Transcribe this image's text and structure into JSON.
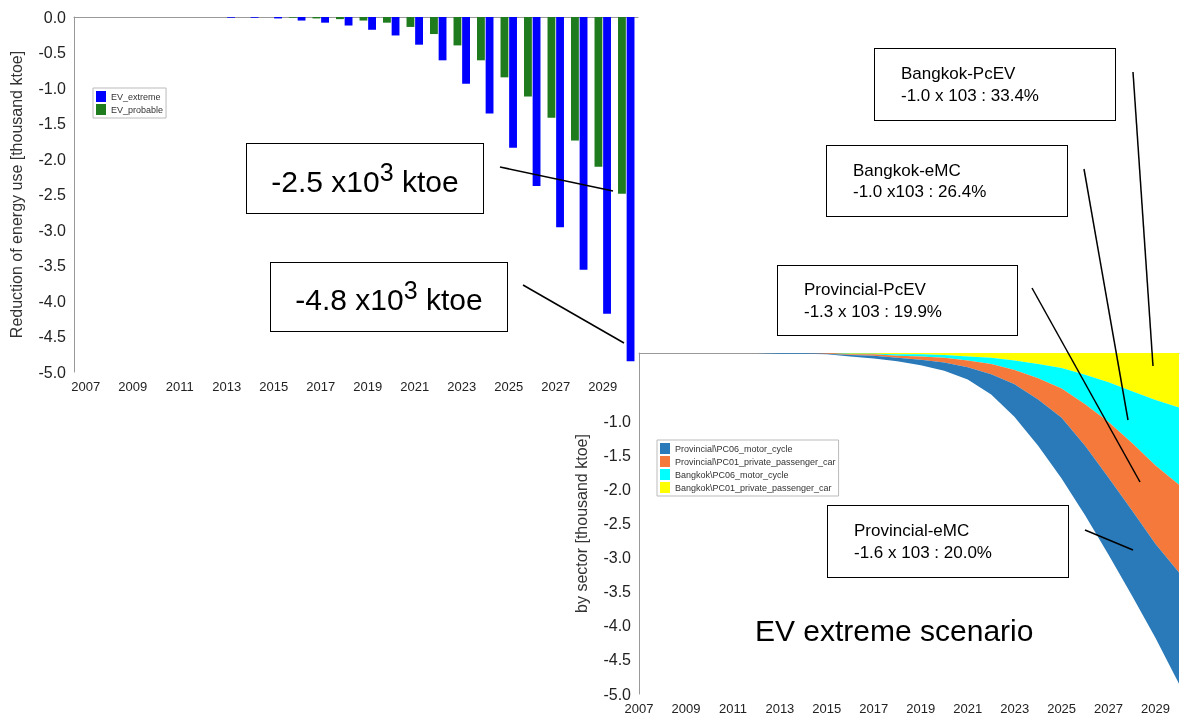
{
  "chart_data": [
    {
      "type": "bar",
      "ylabel": "Reduction of energy use [thousand ktoe]",
      "legend": "top left",
      "grid": false,
      "categories": [
        "2007",
        null,
        "2009",
        null,
        "2011",
        null,
        "2013",
        null,
        "2015",
        null,
        "2017",
        null,
        "2019",
        null,
        "2021",
        null,
        "2023",
        null,
        "2025",
        null,
        "2027",
        null,
        "2029",
        null
      ],
      "series": [
        {
          "name": "EV_extreme",
          "color": "#0000ff",
          "values": [
            0,
            0,
            0,
            0,
            0,
            0,
            -0.01,
            -0.01,
            -0.02,
            -0.05,
            -0.08,
            -0.12,
            -0.18,
            -0.26,
            -0.39,
            -0.61,
            -0.94,
            -1.36,
            -1.84,
            -2.38,
            -2.96,
            -3.56,
            -4.18,
            -4.85
          ]
        },
        {
          "name": "EV_probable",
          "color": "#1e7b1e",
          "values": [
            0,
            0,
            0,
            0,
            0,
            0,
            0,
            0,
            0,
            -0.01,
            -0.02,
            -0.03,
            -0.05,
            -0.08,
            -0.14,
            -0.24,
            -0.4,
            -0.61,
            -0.85,
            -1.12,
            -1.42,
            -1.74,
            -2.11,
            -2.49
          ]
        }
      ],
      "ylim": [
        -5,
        0
      ],
      "yticks": [
        {
          "value": 0,
          "label": "0.0"
        },
        {
          "value": -0.5,
          "label": "-0.5"
        },
        {
          "value": -1,
          "label": "-1.0"
        },
        {
          "value": -1.5,
          "label": "-1.5"
        },
        {
          "value": -2,
          "label": "-2.0"
        },
        {
          "value": -2.5,
          "label": "-2.5"
        },
        {
          "value": -3,
          "label": "-3.0"
        },
        {
          "value": -3.5,
          "label": "-3.5"
        },
        {
          "value": -4,
          "label": "-4.0"
        },
        {
          "value": -4.5,
          "label": "-4.5"
        },
        {
          "value": -5,
          "label": "-5.0"
        }
      ],
      "annotations": [
        "-2.5 x10$^{3}$ ktoe",
        "-4.8 x10$^{3}$ ktoe"
      ]
    },
    {
      "type": "area",
      "stacked": true,
      "title": "EV extreme scenario",
      "ylabel": "by sector [thousand ktoe]",
      "legend": "top left",
      "grid": false,
      "categories": [
        "2007",
        null,
        "2009",
        null,
        "2011",
        null,
        "2013",
        null,
        "2015",
        null,
        "2017",
        null,
        "2019",
        null,
        "2021",
        null,
        "2023",
        null,
        "2025",
        null,
        "2027",
        null,
        "2029",
        null
      ],
      "series": [
        {
          "name": "Bangkok\\PC01_private_passenger_car",
          "color": "#ffff00",
          "values": [
            0,
            0,
            0,
            0,
            0,
            0,
            0,
            0,
            0,
            -0.01,
            -0.01,
            -0.02,
            -0.02,
            -0.03,
            -0.05,
            -0.07,
            -0.11,
            -0.16,
            -0.22,
            -0.32,
            -0.43,
            -0.56,
            -0.69,
            -0.8
          ]
        },
        {
          "name": "Bangkok\\PC06_motor_cycle",
          "color": "#00ffff",
          "values": [
            0,
            0,
            0,
            0,
            0,
            0,
            0,
            0,
            0,
            -0.01,
            -0.01,
            -0.02,
            -0.03,
            -0.04,
            -0.06,
            -0.09,
            -0.14,
            -0.21,
            -0.3,
            -0.43,
            -0.58,
            -0.76,
            -0.96,
            -1.13
          ]
        },
        {
          "name": "Provincial\\PC01_private_passenger_car",
          "color": "#f5793a",
          "values": [
            0,
            0,
            0,
            0,
            0,
            0,
            0,
            0,
            -0.01,
            -0.01,
            -0.02,
            -0.03,
            -0.05,
            -0.07,
            -0.1,
            -0.15,
            -0.21,
            -0.31,
            -0.43,
            -0.61,
            -0.82,
            -0.99,
            -1.15,
            -1.29
          ]
        },
        {
          "name": "Provincial\\PC06_motor_cycle",
          "color": "#2a7ab9",
          "values": [
            0,
            0,
            0,
            0,
            0,
            0,
            -0.01,
            -0.01,
            -0.01,
            -0.02,
            -0.04,
            -0.05,
            -0.08,
            -0.12,
            -0.18,
            -0.3,
            -0.48,
            -0.68,
            -0.89,
            -1.02,
            -1.13,
            -1.25,
            -1.38,
            -1.63
          ]
        }
      ],
      "ylim": [
        -5,
        0
      ],
      "yticks": [
        {
          "value": -1,
          "label": "-1.0"
        },
        {
          "value": -1.5,
          "label": "-1.5"
        },
        {
          "value": -2,
          "label": "-2.0"
        },
        {
          "value": -2.5,
          "label": "-2.5"
        },
        {
          "value": -3,
          "label": "-3.0"
        },
        {
          "value": -3.5,
          "label": "-3.5"
        },
        {
          "value": -4,
          "label": "-4.0"
        },
        {
          "value": -4.5,
          "label": "-4.5"
        },
        {
          "value": -5,
          "label": "-5.0"
        }
      ],
      "annotations": [
        "Bangkok-PcEV\n-1.0 x 103 : 33.4%",
        "Bangkok-eMC\n-1.0 x103 : 26.4%",
        "Provincial-PcEV\n-1.3 x 103 : 19.9%",
        "Provincial-eMC\n-1.6 x 103 : 20.0%"
      ]
    }
  ]
}
